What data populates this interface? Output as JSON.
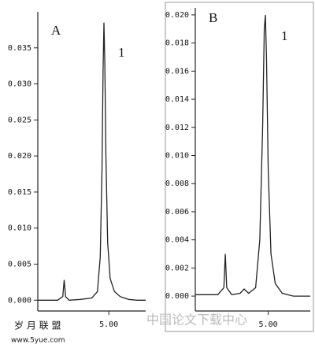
{
  "chart_data": [
    {
      "type": "line",
      "panel_label": "A",
      "peak_label": "1",
      "color": "#222",
      "x": [
        2.5,
        3.2,
        3.38,
        3.43,
        3.48,
        3.6,
        4.0,
        4.4,
        4.6,
        4.7,
        4.76,
        4.8,
        4.83,
        4.86,
        4.9,
        4.96,
        5.05,
        5.2,
        5.4,
        5.7,
        6.0,
        6.3
      ],
      "values": [
        0.0,
        0.0,
        0.0005,
        0.0028,
        0.0005,
        0.0,
        0.0001,
        0.0003,
        0.0012,
        0.006,
        0.018,
        0.032,
        0.0385,
        0.033,
        0.02,
        0.008,
        0.003,
        0.0012,
        0.0005,
        0.0001,
        0.0,
        0.0
      ],
      "xlim": [
        2.5,
        6.3
      ],
      "ylim": [
        -0.0015,
        0.04
      ],
      "xticks": [
        {
          "value": 5,
          "label": "5.00"
        }
      ],
      "yticks": [
        {
          "value": 0,
          "label": "0.000"
        },
        {
          "value": 0.005,
          "label": "0.005"
        },
        {
          "value": 0.01,
          "label": "0.010"
        },
        {
          "value": 0.015,
          "label": "0.015"
        },
        {
          "value": 0.02,
          "label": "0.020"
        },
        {
          "value": 0.025,
          "label": "0.025"
        },
        {
          "value": 0.03,
          "label": "0.030"
        },
        {
          "value": 0.035,
          "label": "0.035"
        }
      ]
    },
    {
      "type": "line",
      "panel_label": "B",
      "peak_label": "1",
      "color": "#222",
      "x": [
        2.4,
        3.2,
        3.42,
        3.47,
        3.52,
        3.7,
        4.0,
        4.14,
        4.3,
        4.55,
        4.7,
        4.8,
        4.86,
        4.9,
        4.94,
        5.0,
        5.1,
        5.25,
        5.5,
        5.9,
        6.5
      ],
      "values": [
        0.0001,
        0.0001,
        0.0006,
        0.003,
        0.0006,
        0.0001,
        0.0002,
        0.0005,
        0.0002,
        0.0006,
        0.004,
        0.012,
        0.019,
        0.02,
        0.017,
        0.009,
        0.003,
        0.0009,
        0.0002,
        0.0,
        0.0
      ],
      "xlim": [
        2.4,
        6.5
      ],
      "ylim": [
        -0.00106,
        0.0205
      ],
      "xticks": [
        {
          "value": 5,
          "label": "5.00"
        }
      ],
      "yticks": [
        {
          "value": 0,
          "label": "0.000"
        },
        {
          "value": 0.002,
          "label": "0.002"
        },
        {
          "value": 0.004,
          "label": "0.004"
        },
        {
          "value": 0.006,
          "label": "0.006"
        },
        {
          "value": 0.008,
          "label": "0.008"
        },
        {
          "value": 0.01,
          "label": "0.010"
        },
        {
          "value": 0.012,
          "label": "0.012"
        },
        {
          "value": 0.014,
          "label": "0.014"
        },
        {
          "value": 0.016,
          "label": "0.016"
        },
        {
          "value": 0.018,
          "label": "0.018"
        },
        {
          "value": 0.02,
          "label": "0.020"
        }
      ]
    }
  ],
  "watermarks": [
    "岁 月 联 盟",
    "www.5yue.com",
    "中国论文下载中心"
  ]
}
